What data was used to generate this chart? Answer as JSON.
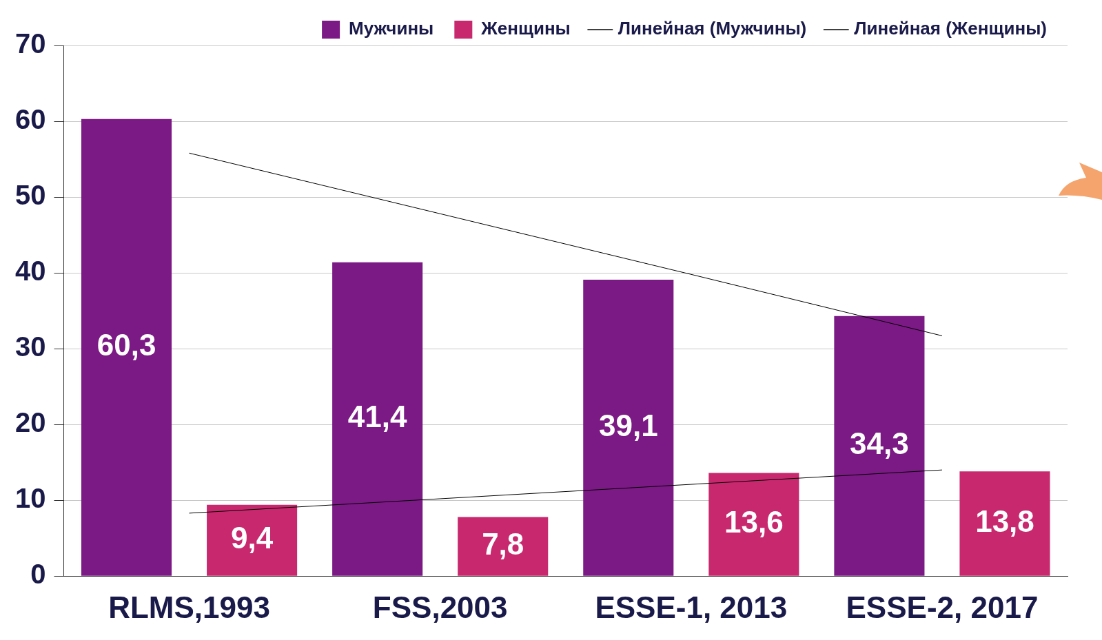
{
  "chart_data": {
    "type": "bar",
    "categories": [
      "RLMS,1993",
      "FSS,2003",
      "ESSE-1, 2013",
      "ESSE-2, 2017"
    ],
    "series": [
      {
        "name": "Мужчины",
        "color": "#7b1a84",
        "values": [
          60.3,
          41.4,
          39.1,
          34.3
        ],
        "value_labels": [
          "60,3",
          "41,4",
          "39,1",
          "34,3"
        ]
      },
      {
        "name": "Женщины",
        "color": "#c8286e",
        "values": [
          9.4,
          7.8,
          13.6,
          13.8
        ],
        "value_labels": [
          "9,4",
          "7,8",
          "13,6",
          "13,8"
        ]
      },
      {
        "name": "Линейная (Мужчины)",
        "type": "line",
        "color": "#000000",
        "values": [
          55.8,
          47.8,
          39.8,
          31.7
        ]
      },
      {
        "name": "Линейная (Женщины)",
        "type": "line",
        "color": "#000000",
        "values": [
          8.3,
          10.2,
          12.1,
          14.0
        ]
      }
    ],
    "ylim": [
      0,
      70
    ],
    "yticks": [
      0,
      10,
      20,
      30,
      40,
      50,
      60,
      70
    ],
    "grid": "y",
    "legend": "top",
    "marker": "none",
    "line_style": "solid"
  }
}
